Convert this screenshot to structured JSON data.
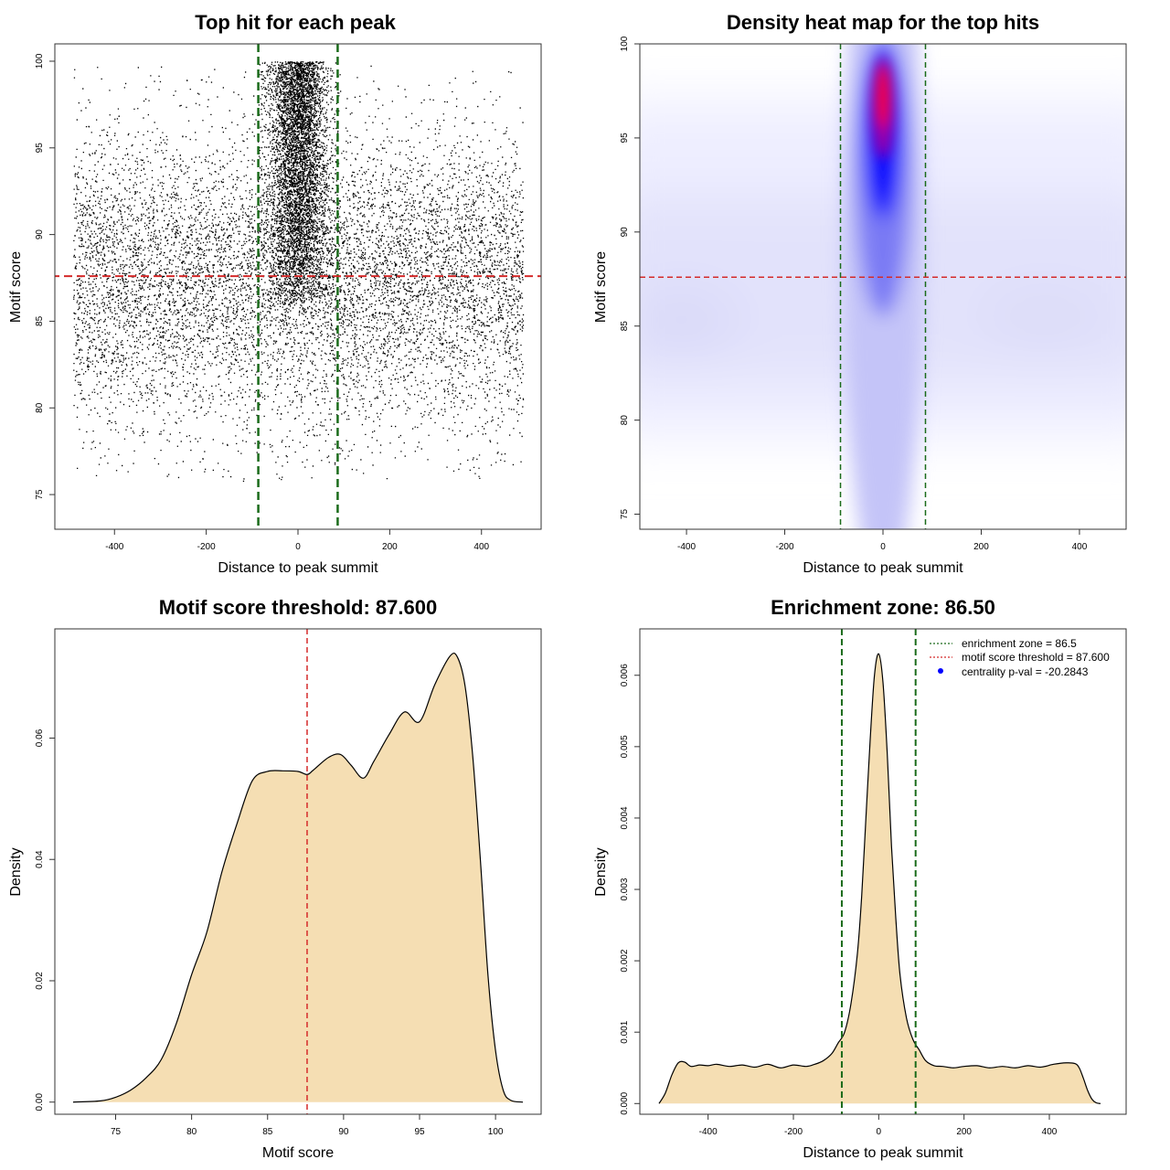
{
  "colors": {
    "fill": "#F5DEB3",
    "green": "#1a6b1a",
    "red": "#d42a2a",
    "heat_low": "#ffffff",
    "heat_mid": "#0000ff",
    "heat_high": "#ff0000",
    "legend_point": "#0000ff"
  },
  "chart_data": [
    {
      "id": "scatter",
      "type": "scatter",
      "title": "Top hit for each peak",
      "xlabel": "Distance to peak summit",
      "ylabel": "Motif score",
      "xlim": [
        -530,
        530
      ],
      "ylim": [
        73,
        101
      ],
      "xticks": [
        -400,
        -200,
        0,
        200,
        400
      ],
      "yticks": [
        75,
        80,
        85,
        90,
        95,
        100
      ],
      "xtick_labels": [
        "-400",
        "-200",
        "0",
        "200",
        "400"
      ],
      "ytick_labels": [
        "75",
        "80",
        "85",
        "90",
        "95",
        "100"
      ],
      "vlines": [
        -86.5,
        86.5
      ],
      "hline": 87.6,
      "points_description_counts": {
        "background": 9000,
        "central": 5500
      },
      "background_x_range": [
        -490,
        490
      ],
      "central_x_sd": 32,
      "central_y_range": [
        86,
        100
      ]
    },
    {
      "id": "heatmap",
      "type": "heatmap",
      "title": "Density heat map for the top hits",
      "xlabel": "Distance to peak summit",
      "ylabel": "Motif score",
      "xlim": [
        -495,
        495
      ],
      "ylim": [
        74.2,
        100
      ],
      "xticks": [
        -400,
        -200,
        0,
        200,
        400
      ],
      "yticks": [
        75,
        80,
        85,
        90,
        95,
        100
      ],
      "xtick_labels": [
        "-400",
        "-200",
        "0",
        "200",
        "400"
      ],
      "ytick_labels": [
        "75",
        "80",
        "85",
        "90",
        "95",
        "100"
      ],
      "vlines": [
        -86.5,
        86.5
      ],
      "hline": 87.6,
      "hotspot": {
        "x": 0,
        "y": 97.2
      }
    },
    {
      "id": "density_score",
      "type": "area",
      "title": "Motif score threshold: 87.600",
      "xlabel": "Motif score",
      "ylabel": "Density",
      "xlim": [
        71,
        103
      ],
      "ylim": [
        -0.002,
        0.078
      ],
      "xticks": [
        75,
        80,
        85,
        90,
        95,
        100
      ],
      "yticks": [
        0.0,
        0.02,
        0.04,
        0.06
      ],
      "xtick_labels": [
        "75",
        "80",
        "85",
        "90",
        "95",
        "100"
      ],
      "ytick_labels": [
        "0.00",
        "0.02",
        "0.04",
        "0.06"
      ],
      "vline": 87.6,
      "x": [
        72.2,
        74,
        75,
        76,
        77,
        78,
        79,
        80,
        81,
        82,
        83,
        84,
        85,
        86,
        87,
        87.6,
        88,
        89,
        89.8,
        90.5,
        91.3,
        92,
        93,
        94,
        95,
        96,
        97,
        97.5,
        98,
        98.5,
        99,
        99.5,
        100,
        100.5,
        101,
        101.8
      ],
      "y": [
        0.0,
        0.0002,
        0.0008,
        0.002,
        0.004,
        0.007,
        0.013,
        0.021,
        0.028,
        0.038,
        0.046,
        0.053,
        0.0545,
        0.0546,
        0.0545,
        0.054,
        0.0547,
        0.0568,
        0.0573,
        0.0555,
        0.0534,
        0.0562,
        0.0606,
        0.0643,
        0.0627,
        0.0688,
        0.0735,
        0.0733,
        0.0685,
        0.057,
        0.04,
        0.021,
        0.0085,
        0.002,
        0.0003,
        0.0
      ]
    },
    {
      "id": "density_distance",
      "type": "area",
      "title": "Enrichment zone: 86.50",
      "xlabel": "Distance to peak summit",
      "ylabel": "Density",
      "xlim": [
        -560,
        580
      ],
      "ylim": [
        -0.00015,
        0.00665
      ],
      "xticks": [
        -400,
        -200,
        0,
        200,
        400
      ],
      "yticks": [
        0.0,
        0.001,
        0.002,
        0.003,
        0.004,
        0.005,
        0.006
      ],
      "xtick_labels": [
        "-400",
        "-200",
        "0",
        "200",
        "400"
      ],
      "ytick_labels": [
        "0.000",
        "0.001",
        "0.002",
        "0.003",
        "0.004",
        "0.005",
        "0.006"
      ],
      "vlines": [
        -86.5,
        86.5
      ],
      "x": [
        -515,
        -500,
        -485,
        -470,
        -455,
        -440,
        -420,
        -400,
        -380,
        -350,
        -320,
        -290,
        -260,
        -230,
        -200,
        -170,
        -150,
        -130,
        -110,
        -95,
        -80,
        -65,
        -50,
        -40,
        -30,
        -20,
        -10,
        0,
        10,
        20,
        30,
        40,
        50,
        65,
        80,
        95,
        110,
        130,
        150,
        175,
        200,
        230,
        260,
        290,
        320,
        350,
        380,
        410,
        440,
        460,
        470,
        480,
        490,
        500,
        510,
        520
      ],
      "y": [
        0.0,
        0.00015,
        0.0004,
        0.00057,
        0.00058,
        0.00052,
        0.00054,
        0.00053,
        0.00055,
        0.00052,
        0.00054,
        0.00051,
        0.00055,
        0.0005,
        0.00054,
        0.00052,
        0.00055,
        0.0006,
        0.0007,
        0.00085,
        0.001,
        0.0014,
        0.0021,
        0.0029,
        0.004,
        0.0051,
        0.006,
        0.0063,
        0.0059,
        0.0049,
        0.0036,
        0.0026,
        0.0018,
        0.0012,
        0.0009,
        0.00075,
        0.0006,
        0.00053,
        0.00052,
        0.0005,
        0.00052,
        0.00053,
        0.0005,
        0.00052,
        0.0005,
        0.00053,
        0.00051,
        0.00055,
        0.00057,
        0.00056,
        0.0005,
        0.00035,
        0.00018,
        6e-05,
        1e-05,
        0.0
      ],
      "legend": [
        {
          "label": "enrichment zone = 86.5",
          "kind": "dotted-line",
          "color": "#1a6b1a"
        },
        {
          "label": "motif score threshold = 87.600",
          "kind": "dotted-line",
          "color": "#d42a2a"
        },
        {
          "label": "centrality p-val = -20.2843",
          "kind": "point",
          "color": "#0000ff"
        }
      ],
      "legend_position": "top-right"
    }
  ]
}
